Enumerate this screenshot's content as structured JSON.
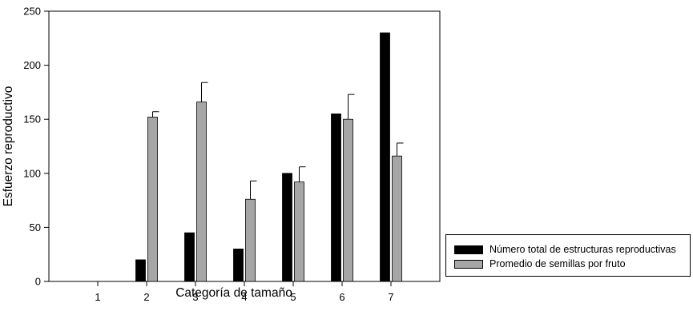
{
  "chart_data": {
    "type": "bar",
    "xlabel": "Categoría de tamaño",
    "ylabel": "Esfuerzo reproductivo",
    "ylim": [
      0,
      250
    ],
    "yticks": [
      0,
      50,
      100,
      150,
      200,
      250
    ],
    "categories": [
      "1",
      "2",
      "3",
      "4",
      "5",
      "6",
      "7"
    ],
    "series": [
      {
        "name": "Número total de estructuras reproductivas",
        "color": "#000000",
        "values": [
          0,
          20,
          45,
          30,
          100,
          155,
          230
        ],
        "errors": [
          0,
          0,
          0,
          0,
          0,
          0,
          0
        ]
      },
      {
        "name": "Promedio de semillas por fruto",
        "color": "#a6a6a6",
        "values": [
          0,
          152,
          166,
          76,
          92,
          150,
          116
        ],
        "errors": [
          0,
          5,
          18,
          17,
          14,
          23,
          12
        ]
      }
    ],
    "legend_position": "bottom-right"
  }
}
